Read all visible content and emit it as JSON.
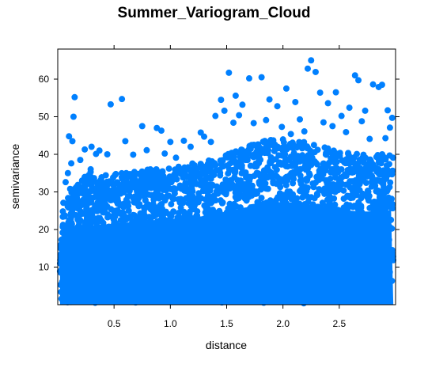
{
  "chart_data": {
    "type": "scatter",
    "title": "Summer_Variogram_Cloud",
    "xlabel": "distance",
    "ylabel": "semivariance",
    "xlim": [
      0,
      3.0
    ],
    "ylim": [
      0,
      68
    ],
    "x_ticks": [
      0.5,
      1.0,
      1.5,
      2.0,
      2.5
    ],
    "x_tick_labels": [
      "0.5",
      "1.0",
      "1.5",
      "2.0",
      "2.5"
    ],
    "y_ticks": [
      10,
      20,
      30,
      40,
      50,
      60
    ],
    "y_tick_labels": [
      "10",
      "20",
      "30",
      "40",
      "50",
      "60"
    ],
    "grid": false,
    "legend": "none",
    "point_color": "#0080FF",
    "series": [
      {
        "points": [
          [
            0.15,
            55.2
          ],
          [
            0.47,
            53.3
          ],
          [
            0.57,
            54.7
          ],
          [
            0.14,
            50.0
          ],
          [
            0.24,
            41.3
          ],
          [
            0.3,
            42.0
          ],
          [
            0.34,
            40.1
          ],
          [
            0.37,
            41.0
          ],
          [
            0.44,
            40.0
          ],
          [
            0.1,
            44.8
          ],
          [
            0.13,
            43.5
          ],
          [
            0.6,
            43.5
          ],
          [
            0.75,
            47.5
          ],
          [
            0.88,
            47.0
          ],
          [
            0.92,
            46.3
          ],
          [
            1.0,
            43.3
          ],
          [
            1.12,
            43.6
          ],
          [
            1.27,
            45.8
          ],
          [
            1.45,
            54.5
          ],
          [
            1.52,
            61.7
          ],
          [
            1.58,
            55.6
          ],
          [
            1.64,
            53.2
          ],
          [
            1.7,
            60.2
          ],
          [
            1.81,
            60.5
          ],
          [
            1.88,
            54.6
          ],
          [
            1.95,
            52.8
          ],
          [
            2.03,
            57.5
          ],
          [
            2.11,
            53.9
          ],
          [
            2.15,
            49.3
          ],
          [
            2.22,
            62.8
          ],
          [
            2.25,
            65.0
          ],
          [
            2.29,
            61.9
          ],
          [
            2.33,
            56.4
          ],
          [
            2.4,
            53.6
          ],
          [
            2.47,
            56.5
          ],
          [
            2.52,
            50.2
          ],
          [
            2.59,
            52.4
          ],
          [
            2.64,
            61.0
          ],
          [
            2.67,
            59.7
          ],
          [
            2.73,
            51.6
          ],
          [
            2.8,
            58.6
          ],
          [
            2.85,
            57.9
          ],
          [
            2.88,
            58.5
          ],
          [
            2.93,
            51.7
          ],
          [
            2.97,
            49.7
          ],
          [
            2.95,
            47.1
          ],
          [
            1.4,
            50.2
          ],
          [
            1.48,
            51.6
          ],
          [
            1.56,
            48.4
          ],
          [
            1.61,
            50.4
          ],
          [
            1.74,
            48.3
          ],
          [
            1.85,
            49.1
          ],
          [
            1.99,
            47.3
          ],
          [
            2.07,
            45.4
          ],
          [
            2.19,
            46.1
          ],
          [
            2.36,
            48.5
          ],
          [
            2.44,
            47.5
          ],
          [
            2.56,
            45.9
          ],
          [
            2.7,
            48.8
          ],
          [
            2.77,
            44.1
          ],
          [
            2.91,
            44.3
          ],
          [
            0.67,
            39.9
          ],
          [
            0.79,
            41.1
          ],
          [
            0.95,
            40.2
          ],
          [
            1.05,
            39.1
          ],
          [
            1.18,
            42.0
          ],
          [
            1.3,
            44.7
          ],
          [
            1.36,
            43.3
          ],
          [
            0.2,
            38.5
          ],
          [
            0.05,
            27.1
          ],
          [
            0.06,
            18.7
          ],
          [
            0.03,
            12.7
          ],
          [
            0.02,
            8.9
          ],
          [
            0.04,
            6.1
          ],
          [
            0.07,
            32.6
          ],
          [
            0.09,
            35.0
          ],
          [
            0.11,
            30.8
          ],
          [
            0.12,
            37.6
          ]
        ]
      }
    ]
  }
}
